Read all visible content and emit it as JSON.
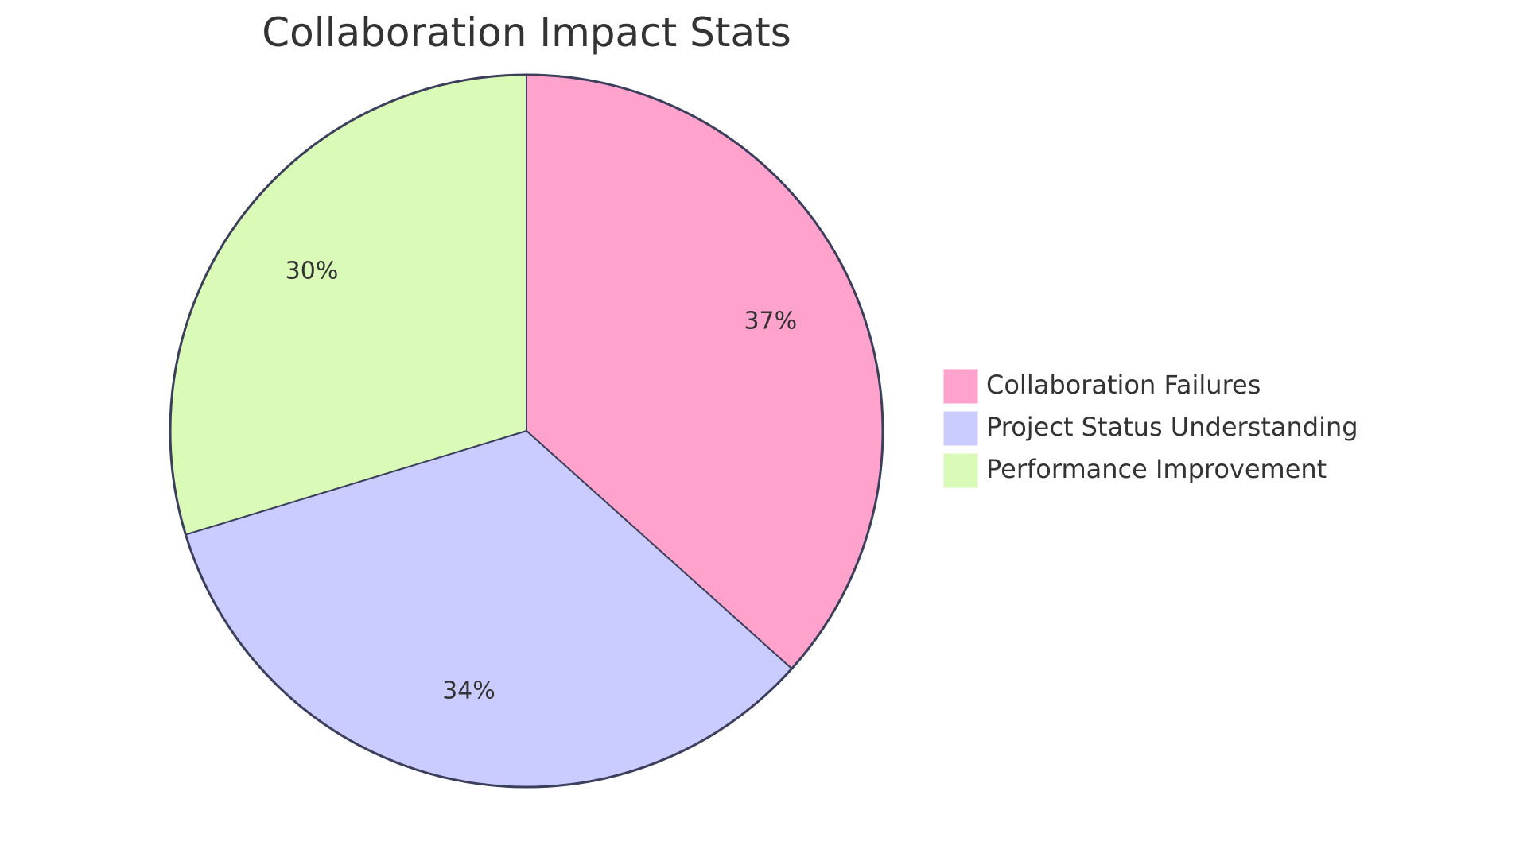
{
  "chart_data": {
    "type": "pie",
    "title": "Collaboration Impact Stats",
    "slices": [
      {
        "label": "Collaboration Failures",
        "value": 37,
        "display": "37%",
        "color": "#ffa3cc"
      },
      {
        "label": "Project Status Understanding",
        "value": 34,
        "display": "34%",
        "color": "#caccff"
      },
      {
        "label": "Performance Improvement",
        "value": 30,
        "display": "30%",
        "color": "#dafab8"
      }
    ],
    "legend_position": "right",
    "start_angle": "top",
    "direction": "clockwise"
  }
}
